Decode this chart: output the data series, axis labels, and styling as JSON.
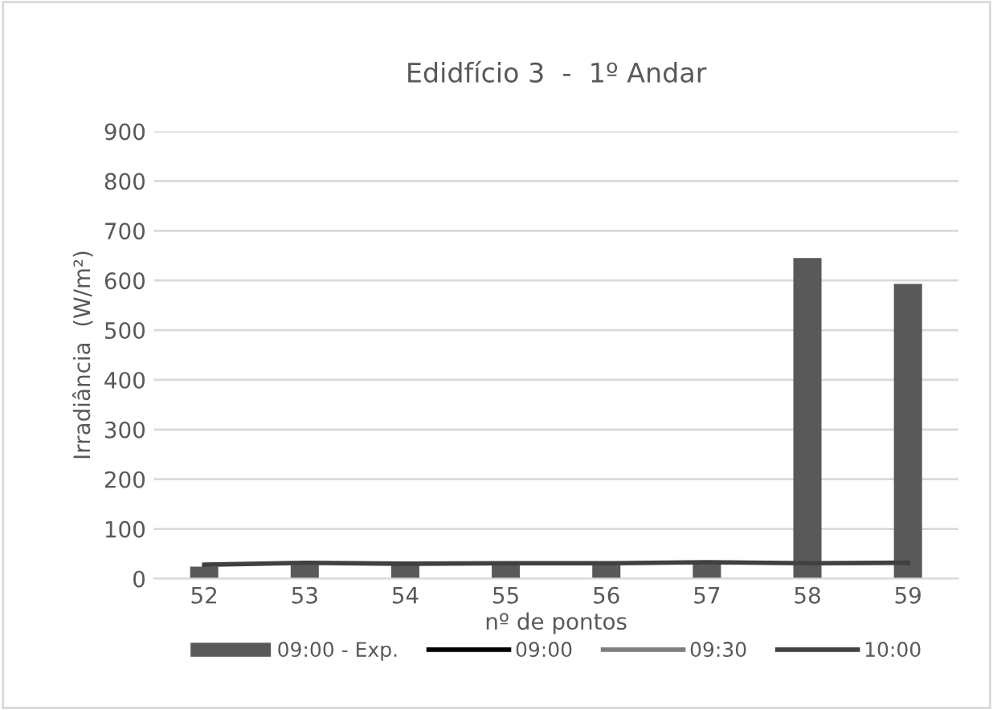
{
  "chart_data": {
    "type": "bar",
    "title": "Edidfício 3  -  1º Andar",
    "xlabel": "nº de pontos",
    "ylabel": "Irradiância  (W/m²)",
    "categories": [
      "52",
      "53",
      "54",
      "55",
      "56",
      "57",
      "58",
      "59"
    ],
    "series": [
      {
        "name": "09:00 - Exp.",
        "color": "#595959",
        "values": [
          24,
          28,
          27,
          27,
          27,
          30,
          645,
          593
        ]
      },
      {
        "name": "09:00",
        "type": "line",
        "color": "#000000",
        "values": [
          null,
          null,
          null,
          null,
          null,
          null,
          null,
          null
        ]
      },
      {
        "name": "09:30",
        "type": "line",
        "color": "#7f7f7f",
        "values": [
          null,
          null,
          null,
          null,
          null,
          null,
          null,
          null
        ]
      },
      {
        "name": "10:00",
        "type": "line",
        "color": "#404040",
        "values": [
          28,
          32,
          30,
          31,
          31,
          33,
          31,
          32
        ]
      }
    ],
    "ylim": [
      0,
      900
    ],
    "yticks": [
      0,
      100,
      200,
      300,
      400,
      500,
      600,
      700,
      800,
      900
    ],
    "grid": "y",
    "legend": "bottom"
  }
}
